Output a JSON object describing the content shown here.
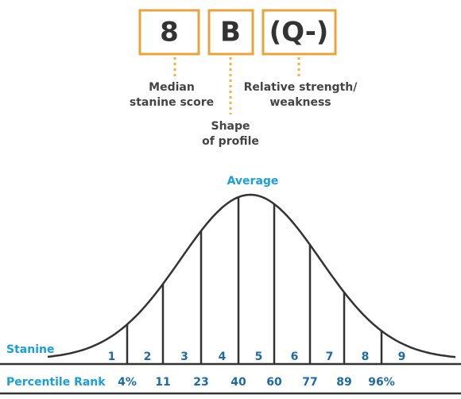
{
  "boxes": [
    "8",
    "B",
    "(Q-)"
  ],
  "labels": [
    {
      "lines": [
        "Median",
        "stanine score"
      ]
    },
    {
      "lines": [
        "Shape",
        "of profile"
      ]
    },
    {
      "lines": [
        "Relative strength/",
        "weakness"
      ]
    }
  ],
  "curve": {
    "peak_label": "Average",
    "axis_label": "Stanine",
    "stanines": [
      "1",
      "2",
      "3",
      "4",
      "5",
      "6",
      "7",
      "8",
      "9"
    ]
  },
  "percentile": {
    "label": "Percentile Rank",
    "values": [
      "4%",
      "11",
      "23",
      "40",
      "60",
      "77",
      "89",
      "96%"
    ]
  }
}
